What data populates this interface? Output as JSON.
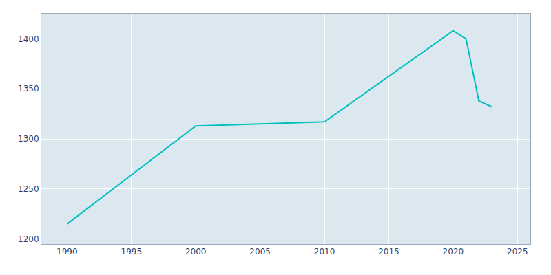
{
  "chart_data": {
    "type": "line",
    "x": [
      1990,
      2000,
      2005,
      2010,
      2020,
      2021,
      2022,
      2023
    ],
    "values": [
      1215,
      1313,
      1315,
      1317,
      1408,
      1400,
      1338,
      1332
    ],
    "color": "#00BFBF",
    "xlim": [
      1988,
      2026
    ],
    "ylim": [
      1195,
      1425
    ],
    "xticks": [
      1990,
      1995,
      2000,
      2005,
      2010,
      2015,
      2020,
      2025
    ],
    "yticks": [
      1200,
      1250,
      1300,
      1350,
      1400
    ],
    "grid": true
  }
}
